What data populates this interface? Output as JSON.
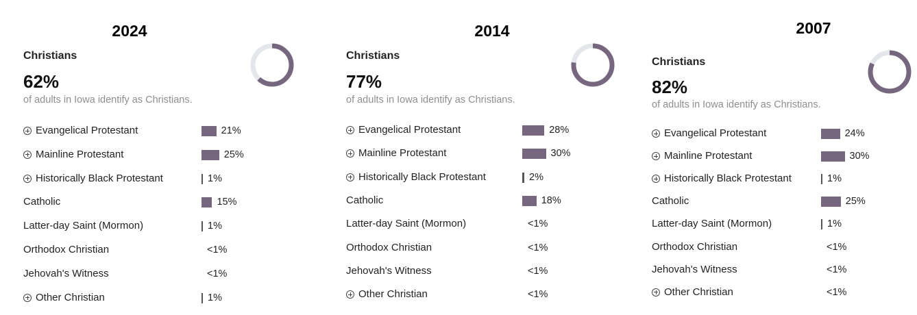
{
  "accent_color": "#76677e",
  "ring_bg_color": "#e3e6ea",
  "panels": [
    {
      "year": "2024",
      "heading": "Christians",
      "percent": "62%",
      "percent_value": 62,
      "subtitle": "of adults in Iowa identify as Christians.",
      "rows": [
        {
          "label": "Evangelical Protestant",
          "expandable": true,
          "value": 21,
          "value_label": "21%"
        },
        {
          "label": "Mainline Protestant",
          "expandable": true,
          "value": 25,
          "value_label": "25%"
        },
        {
          "label": "Historically Black Protestant",
          "expandable": true,
          "value": 1,
          "value_label": "1%"
        },
        {
          "label": "Catholic",
          "expandable": false,
          "value": 15,
          "value_label": "15%"
        },
        {
          "label": "Latter-day Saint (Mormon)",
          "expandable": false,
          "value": 1,
          "value_label": "1%"
        },
        {
          "label": "Orthodox Christian",
          "expandable": false,
          "value": 0,
          "value_label": "<1%"
        },
        {
          "label": "Jehovah's Witness",
          "expandable": false,
          "value": 0,
          "value_label": "<1%"
        },
        {
          "label": "Other Christian",
          "expandable": true,
          "value": 1,
          "value_label": "1%"
        }
      ]
    },
    {
      "year": "2014",
      "heading": "Christians",
      "percent": "77%",
      "percent_value": 77,
      "subtitle": "of adults in Iowa identify as Christians.",
      "rows": [
        {
          "label": "Evangelical Protestant",
          "expandable": true,
          "value": 28,
          "value_label": "28%"
        },
        {
          "label": "Mainline Protestant",
          "expandable": true,
          "value": 30,
          "value_label": "30%"
        },
        {
          "label": "Historically Black Protestant",
          "expandable": true,
          "value": 2,
          "value_label": "2%"
        },
        {
          "label": "Catholic",
          "expandable": false,
          "value": 18,
          "value_label": "18%"
        },
        {
          "label": "Latter-day Saint (Mormon)",
          "expandable": false,
          "value": 0,
          "value_label": "<1%"
        },
        {
          "label": "Orthodox Christian",
          "expandable": false,
          "value": 0,
          "value_label": "<1%"
        },
        {
          "label": "Jehovah's Witness",
          "expandable": false,
          "value": 0,
          "value_label": "<1%"
        },
        {
          "label": "Other Christian",
          "expandable": true,
          "value": 0,
          "value_label": "<1%"
        }
      ]
    },
    {
      "year": "2007",
      "heading": "Christians",
      "percent": "82%",
      "percent_value": 82,
      "subtitle": "of adults in Iowa identify as Christians.",
      "rows": [
        {
          "label": "Evangelical Protestant",
          "expandable": true,
          "value": 24,
          "value_label": "24%"
        },
        {
          "label": "Mainline Protestant",
          "expandable": true,
          "value": 30,
          "value_label": "30%"
        },
        {
          "label": "Historically Black Protestant",
          "expandable": true,
          "value": 1,
          "value_label": "1%"
        },
        {
          "label": "Catholic",
          "expandable": false,
          "value": 25,
          "value_label": "25%"
        },
        {
          "label": "Latter-day Saint (Mormon)",
          "expandable": false,
          "value": 1,
          "value_label": "1%"
        },
        {
          "label": "Orthodox Christian",
          "expandable": false,
          "value": 0,
          "value_label": "<1%"
        },
        {
          "label": "Jehovah's Witness",
          "expandable": false,
          "value": 0,
          "value_label": "<1%"
        },
        {
          "label": "Other Christian",
          "expandable": true,
          "value": 0,
          "value_label": "<1%"
        }
      ]
    }
  ],
  "chart_data": [
    {
      "type": "bar",
      "title": "2024",
      "categories": [
        "Evangelical Protestant",
        "Mainline Protestant",
        "Historically Black Protestant",
        "Catholic",
        "Latter-day Saint (Mormon)",
        "Orthodox Christian",
        "Jehovah's Witness",
        "Other Christian"
      ],
      "values": [
        21,
        25,
        1,
        15,
        1,
        0.5,
        0.5,
        1
      ],
      "value_labels": [
        "21%",
        "25%",
        "1%",
        "15%",
        "1%",
        "<1%",
        "<1%",
        "1%"
      ],
      "total": {
        "label": "Christians",
        "value": 62
      },
      "xlabel": "",
      "ylabel": "",
      "ylim": [
        0,
        100
      ]
    },
    {
      "type": "bar",
      "title": "2014",
      "categories": [
        "Evangelical Protestant",
        "Mainline Protestant",
        "Historically Black Protestant",
        "Catholic",
        "Latter-day Saint (Mormon)",
        "Orthodox Christian",
        "Jehovah's Witness",
        "Other Christian"
      ],
      "values": [
        28,
        30,
        2,
        18,
        0.5,
        0.5,
        0.5,
        0.5
      ],
      "value_labels": [
        "28%",
        "30%",
        "2%",
        "18%",
        "<1%",
        "<1%",
        "<1%",
        "<1%"
      ],
      "total": {
        "label": "Christians",
        "value": 77
      },
      "xlabel": "",
      "ylabel": "",
      "ylim": [
        0,
        100
      ]
    },
    {
      "type": "bar",
      "title": "2007",
      "categories": [
        "Evangelical Protestant",
        "Mainline Protestant",
        "Historically Black Protestant",
        "Catholic",
        "Latter-day Saint (Mormon)",
        "Orthodox Christian",
        "Jehovah's Witness",
        "Other Christian"
      ],
      "values": [
        24,
        30,
        1,
        25,
        1,
        0.5,
        0.5,
        0.5
      ],
      "value_labels": [
        "24%",
        "30%",
        "1%",
        "25%",
        "1%",
        "<1%",
        "<1%",
        "<1%"
      ],
      "total": {
        "label": "Christians",
        "value": 82
      },
      "xlabel": "",
      "ylabel": "",
      "ylim": [
        0,
        100
      ]
    }
  ]
}
